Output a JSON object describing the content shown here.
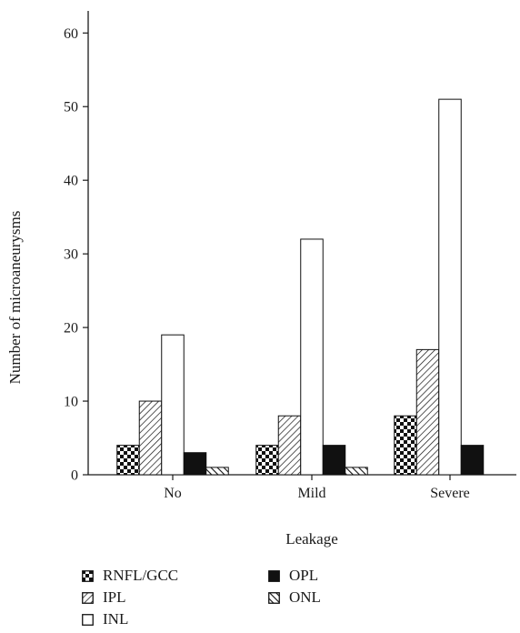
{
  "chart_data": {
    "type": "bar",
    "title": "",
    "xlabel": "Leakage",
    "ylabel": "Number of microaneurysms",
    "categories": [
      "No",
      "Mild",
      "Severe"
    ],
    "ylim": [
      0,
      63
    ],
    "yticks": [
      0,
      10,
      20,
      30,
      40,
      50,
      60
    ],
    "series": [
      {
        "name": "RNFL/GCC",
        "values": [
          4,
          4,
          8
        ],
        "pattern": "checker"
      },
      {
        "name": "IPL",
        "values": [
          10,
          8,
          17
        ],
        "pattern": "hatch"
      },
      {
        "name": "INL",
        "values": [
          19,
          32,
          51
        ],
        "pattern": "white"
      },
      {
        "name": "OPL",
        "values": [
          3,
          4,
          4
        ],
        "pattern": "black"
      },
      {
        "name": "ONL",
        "values": [
          1,
          1,
          0
        ],
        "pattern": "reverse-hatch"
      }
    ],
    "grid": false,
    "legend_position": "bottom"
  }
}
